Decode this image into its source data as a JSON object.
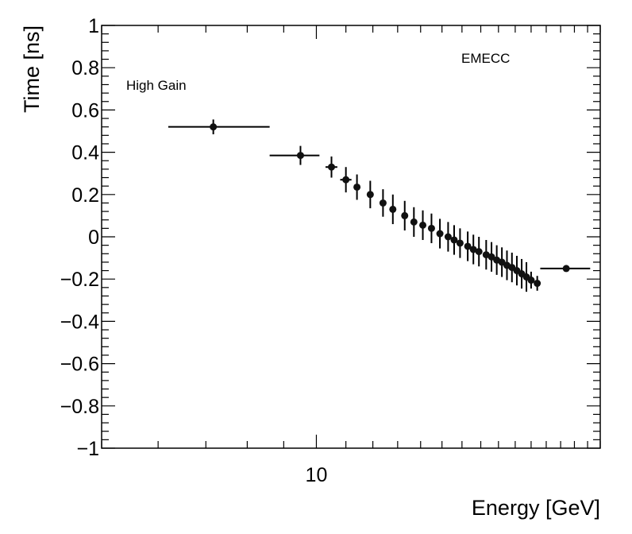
{
  "chart_data": {
    "type": "scatter",
    "title": "",
    "xlabel": "Energy [GeV]",
    "ylabel": "Time [ns]",
    "x_scale": "log",
    "xlim": [
      5,
      25
    ],
    "ylim": [
      -1,
      1
    ],
    "x_ticks": [
      10
    ],
    "x_tick_labels": [
      "10"
    ],
    "y_ticks": [
      -1,
      -0.8,
      -0.6,
      -0.4,
      -0.2,
      0,
      0.2,
      0.4,
      0.6,
      0.8,
      1
    ],
    "y_tick_labels": [
      "−1",
      "−0.8",
      "−0.6",
      "−0.4",
      "−0.2",
      "0",
      "0.2",
      "0.4",
      "0.6",
      "0.8",
      "1"
    ],
    "annotations": {
      "gain": "High Gain",
      "detector": "EMECC"
    },
    "points": [
      {
        "x": 7.17,
        "y": 0.52,
        "xlo": 6.2,
        "xhi": 8.6,
        "yerr": 0.035
      },
      {
        "x": 9.5,
        "y": 0.385,
        "xlo": 8.6,
        "xhi": 10.1,
        "yerr": 0.045
      },
      {
        "x": 10.5,
        "y": 0.33,
        "xlo": 10.3,
        "xhi": 10.7,
        "yerr": 0.05
      },
      {
        "x": 11.0,
        "y": 0.27,
        "xlo": 10.8,
        "xhi": 11.2,
        "yerr": 0.06
      },
      {
        "x": 11.4,
        "y": 0.235,
        "xlo": 11.3,
        "xhi": 11.5,
        "yerr": 0.06
      },
      {
        "x": 11.9,
        "y": 0.2,
        "xlo": 11.8,
        "xhi": 12.0,
        "yerr": 0.065
      },
      {
        "x": 12.4,
        "y": 0.16,
        "xlo": 12.3,
        "xhi": 12.5,
        "yerr": 0.065
      },
      {
        "x": 12.8,
        "y": 0.13,
        "xlo": 12.7,
        "xhi": 12.9,
        "yerr": 0.07
      },
      {
        "x": 13.3,
        "y": 0.1,
        "xlo": 13.2,
        "xhi": 13.4,
        "yerr": 0.07
      },
      {
        "x": 13.7,
        "y": 0.07,
        "xlo": 13.6,
        "xhi": 13.8,
        "yerr": 0.07
      },
      {
        "x": 14.1,
        "y": 0.055,
        "xlo": 14.0,
        "xhi": 14.2,
        "yerr": 0.07
      },
      {
        "x": 14.5,
        "y": 0.04,
        "xlo": 14.4,
        "xhi": 14.6,
        "yerr": 0.07
      },
      {
        "x": 14.9,
        "y": 0.015,
        "xlo": 14.8,
        "xhi": 15.0,
        "yerr": 0.07
      },
      {
        "x": 15.3,
        "y": 0.0,
        "xlo": 15.2,
        "xhi": 15.4,
        "yerr": 0.07
      },
      {
        "x": 15.6,
        "y": -0.015,
        "xlo": 15.5,
        "xhi": 15.7,
        "yerr": 0.07
      },
      {
        "x": 15.9,
        "y": -0.03,
        "xlo": 15.8,
        "xhi": 16.0,
        "yerr": 0.07
      },
      {
        "x": 16.3,
        "y": -0.045,
        "xlo": 16.2,
        "xhi": 16.4,
        "yerr": 0.07
      },
      {
        "x": 16.6,
        "y": -0.06,
        "xlo": 16.5,
        "xhi": 16.7,
        "yerr": 0.07
      },
      {
        "x": 16.9,
        "y": -0.07,
        "xlo": 16.8,
        "xhi": 17.0,
        "yerr": 0.07
      },
      {
        "x": 17.3,
        "y": -0.085,
        "xlo": 17.2,
        "xhi": 17.4,
        "yerr": 0.07
      },
      {
        "x": 17.6,
        "y": -0.095,
        "xlo": 17.5,
        "xhi": 17.7,
        "yerr": 0.07
      },
      {
        "x": 17.9,
        "y": -0.11,
        "xlo": 17.8,
        "xhi": 18.0,
        "yerr": 0.07
      },
      {
        "x": 18.2,
        "y": -0.12,
        "xlo": 18.1,
        "xhi": 18.3,
        "yerr": 0.07
      },
      {
        "x": 18.5,
        "y": -0.135,
        "xlo": 18.4,
        "xhi": 18.6,
        "yerr": 0.07
      },
      {
        "x": 18.8,
        "y": -0.145,
        "xlo": 18.7,
        "xhi": 18.9,
        "yerr": 0.07
      },
      {
        "x": 19.1,
        "y": -0.16,
        "xlo": 19.0,
        "xhi": 19.2,
        "yerr": 0.07
      },
      {
        "x": 19.4,
        "y": -0.175,
        "xlo": 19.3,
        "xhi": 19.5,
        "yerr": 0.07
      },
      {
        "x": 19.7,
        "y": -0.19,
        "xlo": 19.6,
        "xhi": 19.8,
        "yerr": 0.07
      },
      {
        "x": 20.0,
        "y": -0.205,
        "xlo": 19.9,
        "xhi": 20.1,
        "yerr": 0.04
      },
      {
        "x": 20.4,
        "y": -0.22,
        "xlo": 20.2,
        "xhi": 20.6,
        "yerr": 0.035
      },
      {
        "x": 22.4,
        "y": -0.15,
        "xlo": 20.6,
        "xhi": 24.2,
        "yerr": 0.015
      }
    ]
  }
}
